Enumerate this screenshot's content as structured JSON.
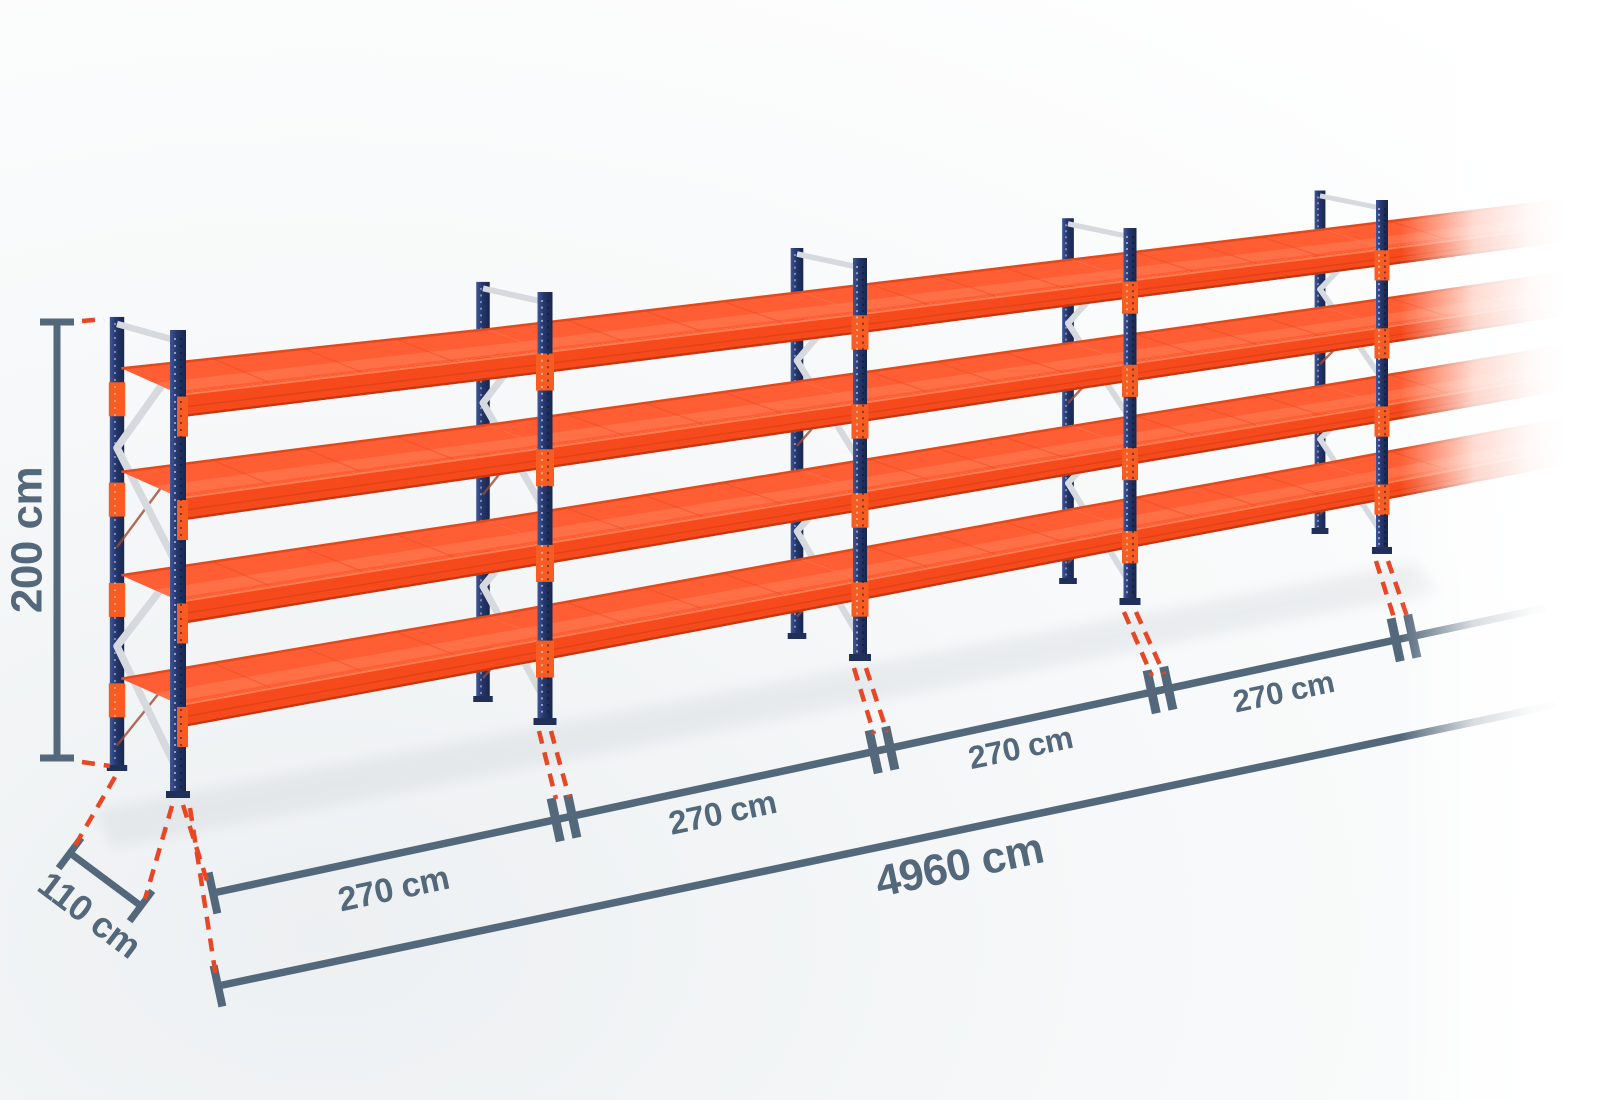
{
  "diagram": {
    "subject": "pallet-rack-with-dimensions",
    "rack": {
      "shelf_levels": 4,
      "visible_frames": 5,
      "visible_bays": 4,
      "continues_right_with_fade": true
    },
    "dimensions": {
      "height": {
        "label": "200 cm"
      },
      "depth": {
        "label": "110 cm"
      },
      "bays": [
        {
          "label": "270 cm"
        },
        {
          "label": "270 cm"
        },
        {
          "label": "270 cm"
        },
        {
          "label": "270 cm"
        }
      ],
      "total_length": {
        "label": "4960 cm"
      }
    },
    "colors": {
      "dimension_line": "#54687b",
      "extension_dash": "#e74724",
      "shelf_top_orange": "#ff5e35",
      "shelf_highlight": "#ff8157",
      "beam_orange": "#f6491c",
      "connector_orange": "#f75c22",
      "upright_navy": "#26386c",
      "brace_silver": "#d6dade",
      "foot_navy": "#203059",
      "background": "#f6f8f9"
    }
  }
}
